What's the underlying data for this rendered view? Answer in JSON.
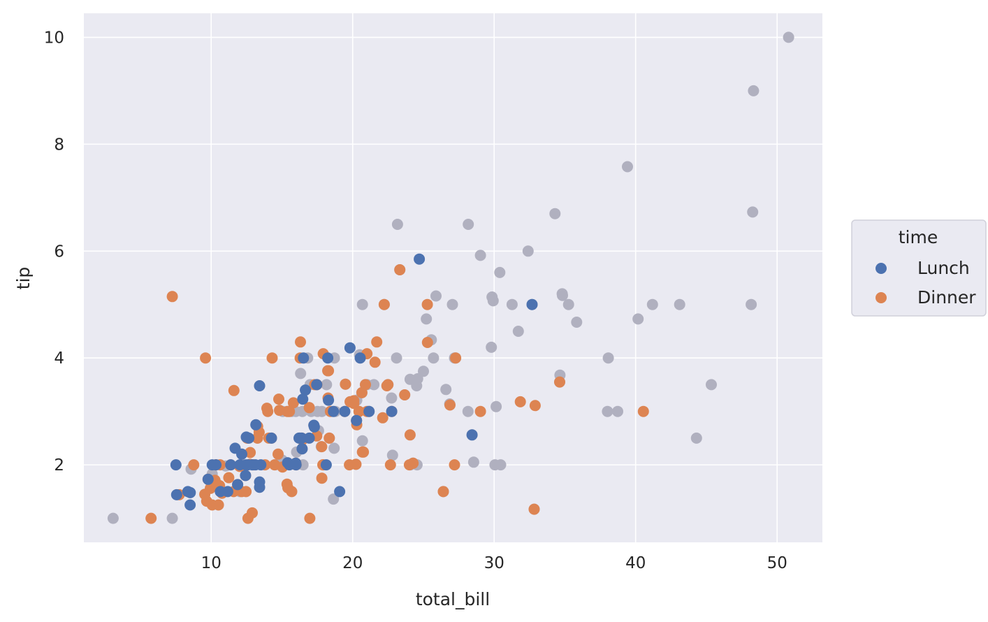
{
  "colors": {
    "background": "#eaeaf2",
    "grid": "#ffffff",
    "lunch": "#4c72b0",
    "dinner": "#dd8452",
    "unassigned": "#b0b0bf"
  },
  "chart_data": {
    "type": "scatter",
    "xlabel": "total_bill",
    "ylabel": "tip",
    "xlim": [
      1.0,
      53.2
    ],
    "ylim": [
      0.55,
      10.45
    ],
    "xticks": [
      10,
      20,
      30,
      40,
      50
    ],
    "yticks": [
      2,
      4,
      6,
      8,
      10
    ],
    "grid": true,
    "legend": {
      "title": "time",
      "placement": "right",
      "entries": [
        "Lunch",
        "Dinner"
      ]
    },
    "series": [
      {
        "name": "unassigned",
        "points": [
          [
            3.07,
            1.0
          ],
          [
            7.25,
            1.0
          ],
          [
            8.58,
            1.92
          ],
          [
            10.07,
            1.83
          ],
          [
            10.65,
            1.5
          ],
          [
            11.02,
            1.98
          ],
          [
            12.03,
            1.5
          ],
          [
            12.26,
            2.0
          ],
          [
            12.6,
            2.5
          ],
          [
            12.9,
            2.0
          ],
          [
            13.03,
            2.0
          ],
          [
            13.27,
            2.5
          ],
          [
            13.42,
            3.48
          ],
          [
            14.52,
            2.0
          ],
          [
            15.01,
            2.09
          ],
          [
            15.06,
            3.0
          ],
          [
            15.48,
            3.0
          ],
          [
            15.69,
            3.0
          ],
          [
            15.98,
            3.0
          ],
          [
            16.04,
            2.24
          ],
          [
            16.27,
            2.5
          ],
          [
            16.32,
            3.71
          ],
          [
            16.43,
            2.3
          ],
          [
            16.45,
            3.0
          ],
          [
            16.49,
            2.0
          ],
          [
            16.66,
            3.4
          ],
          [
            16.82,
            4.0
          ],
          [
            16.93,
            3.07
          ],
          [
            16.99,
            3.5
          ],
          [
            17.07,
            3.0
          ],
          [
            17.26,
            2.74
          ],
          [
            17.29,
            2.71
          ],
          [
            17.51,
            3.0
          ],
          [
            17.59,
            2.64
          ],
          [
            17.78,
            2.34
          ],
          [
            17.82,
            3.0
          ],
          [
            18.15,
            3.5
          ],
          [
            18.24,
            3.76
          ],
          [
            18.29,
            3.21
          ],
          [
            18.35,
            2.5
          ],
          [
            18.69,
            2.31
          ],
          [
            18.64,
            1.36
          ],
          [
            18.78,
            3.0
          ],
          [
            18.71,
            4.0
          ],
          [
            19.49,
            3.51
          ],
          [
            19.82,
            3.18
          ],
          [
            20.23,
            2.01
          ],
          [
            20.27,
            2.83
          ],
          [
            20.29,
            3.21
          ],
          [
            20.45,
            3.0
          ],
          [
            20.49,
            4.06
          ],
          [
            20.53,
            4.0
          ],
          [
            20.65,
            3.35
          ],
          [
            20.69,
            5.0
          ],
          [
            20.69,
            2.45
          ],
          [
            20.9,
            3.5
          ],
          [
            21.01,
            3.5
          ],
          [
            21.16,
            3.0
          ],
          [
            21.5,
            3.5
          ],
          [
            22.23,
            5.0
          ],
          [
            22.49,
            3.5
          ],
          [
            22.75,
            3.25
          ],
          [
            22.82,
            2.18
          ],
          [
            23.1,
            4.0
          ],
          [
            23.17,
            6.5
          ],
          [
            23.33,
            5.65
          ],
          [
            23.68,
            3.31
          ],
          [
            24.06,
            3.6
          ],
          [
            24.08,
            2.0
          ],
          [
            24.27,
            2.03
          ],
          [
            24.52,
            3.48
          ],
          [
            24.55,
            2.0
          ],
          [
            24.59,
            3.61
          ],
          [
            25.0,
            3.75
          ],
          [
            25.21,
            4.73
          ],
          [
            25.56,
            4.34
          ],
          [
            25.71,
            4.0
          ],
          [
            25.89,
            5.16
          ],
          [
            26.41,
            1.5
          ],
          [
            26.59,
            3.41
          ],
          [
            26.86,
            3.14
          ],
          [
            27.05,
            5.0
          ],
          [
            27.2,
            4.0
          ],
          [
            27.28,
            4.0
          ],
          [
            28.15,
            3.0
          ],
          [
            28.17,
            6.5
          ],
          [
            28.44,
            2.56
          ],
          [
            28.55,
            2.05
          ],
          [
            29.03,
            5.92
          ],
          [
            29.8,
            4.2
          ],
          [
            29.85,
            5.14
          ],
          [
            29.93,
            5.07
          ],
          [
            30.06,
            2.0
          ],
          [
            30.14,
            3.09
          ],
          [
            30.4,
            5.6
          ],
          [
            30.46,
            2.0
          ],
          [
            31.27,
            5.0
          ],
          [
            31.71,
            4.5
          ],
          [
            32.4,
            6.0
          ],
          [
            32.68,
            5.0
          ],
          [
            32.83,
            1.17
          ],
          [
            34.3,
            6.7
          ],
          [
            34.63,
            3.55
          ],
          [
            34.65,
            3.68
          ],
          [
            34.81,
            5.2
          ],
          [
            34.83,
            5.17
          ],
          [
            35.26,
            5.0
          ],
          [
            35.83,
            4.67
          ],
          [
            38.01,
            3.0
          ],
          [
            38.07,
            4.0
          ],
          [
            38.73,
            3.0
          ],
          [
            39.42,
            7.58
          ],
          [
            40.17,
            4.73
          ],
          [
            41.19,
            5.0
          ],
          [
            43.11,
            5.0
          ],
          [
            44.3,
            2.5
          ],
          [
            45.35,
            3.5
          ],
          [
            48.17,
            5.0
          ],
          [
            48.27,
            6.73
          ],
          [
            48.33,
            9.0
          ],
          [
            50.81,
            10.0
          ]
        ]
      },
      {
        "name": "Dinner",
        "points": [
          [
            5.75,
            1.0
          ],
          [
            7.25,
            5.15
          ],
          [
            7.74,
            1.44
          ],
          [
            8.77,
            2.0
          ],
          [
            9.55,
            1.45
          ],
          [
            9.6,
            4.0
          ],
          [
            9.68,
            1.32
          ],
          [
            9.78,
            1.73
          ],
          [
            9.94,
            1.56
          ],
          [
            10.07,
            1.25
          ],
          [
            10.27,
            1.71
          ],
          [
            10.33,
            2.0
          ],
          [
            10.34,
            1.66
          ],
          [
            10.34,
            2.0
          ],
          [
            10.51,
            1.25
          ],
          [
            10.59,
            1.61
          ],
          [
            10.63,
            2.0
          ],
          [
            10.77,
            1.47
          ],
          [
            11.24,
            1.76
          ],
          [
            11.38,
            2.0
          ],
          [
            11.59,
            1.5
          ],
          [
            11.61,
            3.39
          ],
          [
            11.87,
            1.63
          ],
          [
            12.16,
            1.5
          ],
          [
            12.43,
            1.8
          ],
          [
            12.46,
            1.5
          ],
          [
            12.54,
            2.5
          ],
          [
            12.6,
            1.0
          ],
          [
            12.74,
            2.01
          ],
          [
            12.76,
            2.23
          ],
          [
            12.9,
            1.1
          ],
          [
            13.0,
            2.0
          ],
          [
            13.27,
            2.5
          ],
          [
            13.28,
            2.72
          ],
          [
            13.39,
            2.61
          ],
          [
            13.81,
            2.0
          ],
          [
            13.94,
            3.06
          ],
          [
            14.0,
            3.0
          ],
          [
            14.07,
            2.5
          ],
          [
            14.26,
            2.5
          ],
          [
            14.31,
            4.0
          ],
          [
            14.48,
            2.0
          ],
          [
            14.73,
            2.2
          ],
          [
            14.78,
            3.23
          ],
          [
            14.83,
            3.02
          ],
          [
            15.04,
            1.96
          ],
          [
            15.36,
            1.64
          ],
          [
            15.42,
            1.57
          ],
          [
            15.53,
            3.0
          ],
          [
            15.69,
            1.5
          ],
          [
            15.81,
            3.16
          ],
          [
            15.98,
            2.03
          ],
          [
            16.0,
            2.0
          ],
          [
            16.29,
            4.0
          ],
          [
            16.31,
            4.3
          ],
          [
            16.4,
            2.5
          ],
          [
            16.93,
            3.07
          ],
          [
            16.97,
            1.0
          ],
          [
            17.31,
            3.5
          ],
          [
            17.46,
            2.54
          ],
          [
            17.47,
            3.5
          ],
          [
            17.81,
            2.34
          ],
          [
            17.89,
            2.0
          ],
          [
            17.92,
            4.08
          ],
          [
            18.24,
            3.76
          ],
          [
            18.26,
            3.25
          ],
          [
            18.29,
            3.76
          ],
          [
            18.43,
            3.0
          ],
          [
            19.44,
            3.0
          ],
          [
            19.49,
            3.51
          ],
          [
            19.77,
            2.0
          ],
          [
            19.82,
            3.18
          ],
          [
            20.08,
            3.15
          ],
          [
            20.23,
            2.01
          ],
          [
            20.27,
            2.83
          ],
          [
            20.29,
            2.75
          ],
          [
            20.45,
            3.0
          ],
          [
            20.65,
            3.35
          ],
          [
            20.69,
            2.24
          ],
          [
            20.76,
            2.24
          ],
          [
            20.9,
            3.5
          ],
          [
            21.01,
            3.0
          ],
          [
            21.58,
            3.92
          ],
          [
            21.7,
            4.3
          ],
          [
            22.12,
            2.88
          ],
          [
            22.23,
            5.0
          ],
          [
            22.42,
            3.48
          ],
          [
            22.49,
            3.5
          ],
          [
            22.76,
            3.0
          ],
          [
            23.33,
            5.65
          ],
          [
            23.68,
            3.31
          ],
          [
            24.01,
            2.0
          ],
          [
            24.27,
            2.03
          ],
          [
            25.28,
            5.0
          ],
          [
            25.29,
            4.29
          ],
          [
            26.41,
            1.5
          ],
          [
            26.88,
            3.12
          ],
          [
            27.2,
            2.0
          ],
          [
            27.28,
            4.0
          ],
          [
            29.03,
            3.0
          ],
          [
            31.85,
            3.18
          ],
          [
            32.83,
            1.17
          ],
          [
            32.9,
            3.11
          ],
          [
            34.63,
            3.55
          ],
          [
            40.55,
            3.0
          ],
          [
            17.82,
            1.75
          ],
          [
            15.38,
            3.0
          ],
          [
            20.08,
            3.2
          ],
          [
            17.92,
            2.0
          ],
          [
            24.06,
            2.56
          ],
          [
            16.45,
            2.47
          ],
          [
            22.67,
            2.0
          ],
          [
            21.01,
            4.08
          ],
          [
            12.02,
            1.97
          ],
          [
            18.35,
            2.5
          ],
          [
            10.65,
            1.5
          ]
        ]
      },
      {
        "name": "Lunch",
        "points": [
          [
            7.51,
            2.0
          ],
          [
            7.56,
            1.44
          ],
          [
            8.35,
            1.5
          ],
          [
            8.51,
            1.25
          ],
          [
            8.52,
            1.48
          ],
          [
            9.78,
            1.73
          ],
          [
            10.07,
            2.0
          ],
          [
            10.34,
            2.0
          ],
          [
            10.65,
            1.5
          ],
          [
            11.17,
            1.5
          ],
          [
            11.38,
            2.0
          ],
          [
            11.69,
            2.31
          ],
          [
            11.87,
            1.63
          ],
          [
            12.03,
            2.0
          ],
          [
            12.16,
            2.2
          ],
          [
            12.43,
            1.8
          ],
          [
            12.46,
            2.0
          ],
          [
            12.48,
            2.52
          ],
          [
            12.66,
            2.5
          ],
          [
            12.9,
            2.0
          ],
          [
            13.13,
            2.0
          ],
          [
            13.16,
            2.75
          ],
          [
            13.42,
            3.48
          ],
          [
            13.42,
            1.68
          ],
          [
            13.42,
            1.58
          ],
          [
            13.51,
            2.0
          ],
          [
            14.26,
            2.5
          ],
          [
            15.4,
            2.04
          ],
          [
            15.98,
            2.03
          ],
          [
            16.0,
            2.0
          ],
          [
            16.21,
            2.5
          ],
          [
            16.27,
            2.5
          ],
          [
            16.47,
            3.23
          ],
          [
            16.66,
            3.4
          ],
          [
            16.93,
            2.5
          ],
          [
            17.26,
            2.74
          ],
          [
            17.46,
            3.5
          ],
          [
            18.13,
            2.0
          ],
          [
            18.24,
            4.0
          ],
          [
            18.64,
            3.0
          ],
          [
            19.08,
            1.5
          ],
          [
            19.44,
            3.0
          ],
          [
            19.81,
            4.19
          ],
          [
            20.27,
            2.83
          ],
          [
            20.53,
            4.0
          ],
          [
            21.16,
            3.0
          ],
          [
            22.76,
            3.0
          ],
          [
            24.71,
            5.85
          ],
          [
            28.44,
            2.56
          ],
          [
            32.68,
            5.0
          ],
          [
            16.4,
            2.5
          ],
          [
            16.43,
            2.3
          ],
          [
            17.29,
            2.71
          ],
          [
            18.29,
            3.21
          ],
          [
            16.52,
            4.0
          ],
          [
            15.53,
            2.0
          ],
          [
            12.6,
            2.0
          ]
        ]
      }
    ]
  }
}
